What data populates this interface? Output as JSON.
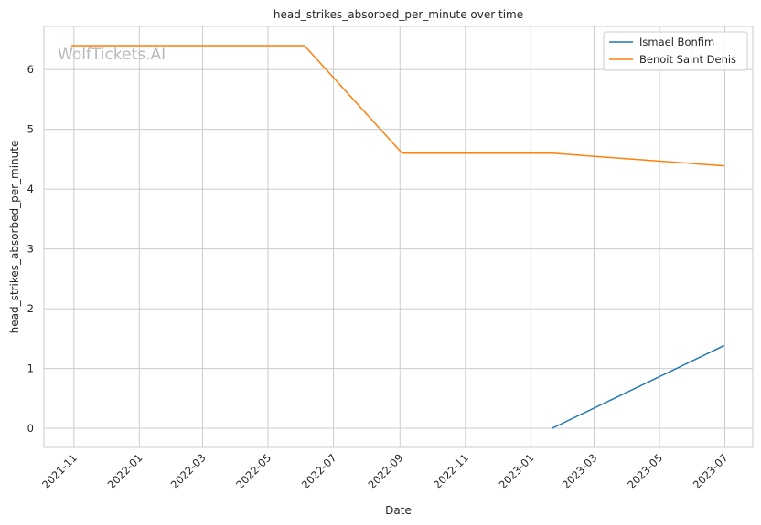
{
  "chart_data": {
    "type": "line",
    "title": "head_strikes_absorbed_per_minute over time",
    "xlabel": "Date",
    "ylabel": "head_strikes_absorbed_per_minute",
    "watermark": "WolfTickets.AI",
    "x_ticks": [
      "2021-11",
      "2022-01",
      "2022-03",
      "2022-05",
      "2022-07",
      "2022-09",
      "2022-11",
      "2023-01",
      "2023-03",
      "2023-05",
      "2023-07"
    ],
    "y_ticks": [
      "0",
      "1",
      "2",
      "3",
      "4",
      "5",
      "6"
    ],
    "xlim": [
      "2021-10-04",
      "2023-07-27"
    ],
    "ylim": [
      -0.32,
      6.72
    ],
    "grid": true,
    "legend_position": "top-right",
    "series": [
      {
        "name": "Ismael Bonfim",
        "color": "#1f77b4",
        "points": [
          {
            "x": "2023-01-21",
            "y": 0.0
          },
          {
            "x": "2023-06-30",
            "y": 1.38
          }
        ]
      },
      {
        "name": "Benoit Saint Denis",
        "color": "#ff7f0e",
        "points": [
          {
            "x": "2021-10-30",
            "y": 6.4
          },
          {
            "x": "2022-06-04",
            "y": 6.4
          },
          {
            "x": "2022-09-03",
            "y": 4.6
          },
          {
            "x": "2023-01-21",
            "y": 4.6
          },
          {
            "x": "2023-06-30",
            "y": 4.39
          }
        ]
      }
    ]
  }
}
